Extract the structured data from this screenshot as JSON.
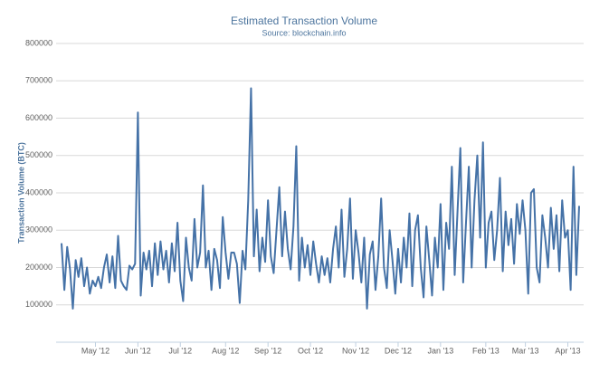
{
  "chart_data": {
    "type": "line",
    "title": "Estimated Transaction Volume",
    "subtitle": "Source: blockchain.info",
    "y_label": "Transaction Volume (BTC)",
    "ylim": [
      0,
      800000
    ],
    "yticks": [
      100000,
      200000,
      300000,
      400000,
      500000,
      600000,
      700000,
      800000
    ],
    "grid": true,
    "color": "#4572a7",
    "categories": [
      null,
      null,
      null,
      null,
      null,
      null,
      null,
      null,
      null,
      null,
      null,
      null,
      "May '12",
      null,
      null,
      null,
      null,
      null,
      null,
      null,
      null,
      null,
      null,
      null,
      null,
      null,
      null,
      "Jun '12",
      null,
      null,
      null,
      null,
      null,
      null,
      null,
      null,
      null,
      null,
      null,
      null,
      null,
      null,
      "Jul '12",
      null,
      null,
      null,
      null,
      null,
      null,
      null,
      null,
      null,
      null,
      null,
      null,
      null,
      null,
      null,
      "Aug '12",
      null,
      null,
      null,
      null,
      null,
      null,
      null,
      null,
      null,
      null,
      null,
      null,
      null,
      null,
      "Sep '12",
      null,
      null,
      null,
      null,
      null,
      null,
      null,
      null,
      null,
      null,
      null,
      null,
      null,
      null,
      "Oct '12",
      null,
      null,
      null,
      null,
      null,
      null,
      null,
      null,
      null,
      null,
      null,
      null,
      null,
      null,
      null,
      "Nov '12",
      null,
      null,
      null,
      null,
      null,
      null,
      null,
      null,
      null,
      null,
      null,
      null,
      null,
      null,
      "Dec '12",
      null,
      null,
      null,
      null,
      null,
      null,
      null,
      null,
      null,
      null,
      null,
      null,
      null,
      null,
      "Jan '13",
      null,
      null,
      null,
      null,
      null,
      null,
      null,
      null,
      null,
      null,
      null,
      null,
      null,
      null,
      null,
      "Feb '13",
      null,
      null,
      null,
      null,
      null,
      null,
      null,
      null,
      null,
      null,
      null,
      null,
      null,
      "Mar '13",
      null,
      null,
      null,
      null,
      null,
      null,
      null,
      null,
      null,
      null,
      null,
      null,
      null,
      null,
      "Apr '13",
      null,
      null,
      null,
      null
    ],
    "values": [
      265000,
      140000,
      255000,
      195000,
      90000,
      220000,
      175000,
      225000,
      150000,
      200000,
      130000,
      165000,
      150000,
      175000,
      145000,
      200000,
      235000,
      160000,
      230000,
      145000,
      285000,
      165000,
      150000,
      140000,
      205000,
      195000,
      210000,
      615000,
      125000,
      240000,
      195000,
      245000,
      150000,
      265000,
      180000,
      270000,
      195000,
      245000,
      160000,
      265000,
      190000,
      320000,
      165000,
      110000,
      280000,
      200000,
      165000,
      330000,
      200000,
      240000,
      420000,
      200000,
      245000,
      140000,
      250000,
      220000,
      145000,
      335000,
      240000,
      170000,
      240000,
      240000,
      210000,
      105000,
      245000,
      195000,
      380000,
      680000,
      230000,
      355000,
      190000,
      280000,
      215000,
      380000,
      230000,
      185000,
      300000,
      415000,
      230000,
      350000,
      250000,
      195000,
      310000,
      525000,
      165000,
      280000,
      200000,
      260000,
      180000,
      270000,
      210000,
      160000,
      230000,
      180000,
      225000,
      160000,
      250000,
      310000,
      200000,
      355000,
      175000,
      250000,
      385000,
      170000,
      300000,
      240000,
      160000,
      280000,
      90000,
      235000,
      270000,
      140000,
      230000,
      385000,
      200000,
      145000,
      300000,
      220000,
      130000,
      250000,
      160000,
      280000,
      200000,
      345000,
      150000,
      300000,
      340000,
      200000,
      120000,
      310000,
      220000,
      125000,
      280000,
      200000,
      370000,
      140000,
      320000,
      250000,
      470000,
      180000,
      350000,
      520000,
      160000,
      320000,
      470000,
      200000,
      380000,
      500000,
      280000,
      535000,
      200000,
      320000,
      350000,
      220000,
      300000,
      440000,
      190000,
      350000,
      260000,
      330000,
      210000,
      370000,
      290000,
      380000,
      300000,
      130000,
      400000,
      410000,
      200000,
      160000,
      340000,
      280000,
      200000,
      360000,
      250000,
      340000,
      190000,
      380000,
      280000,
      300000,
      140000,
      470000,
      180000,
      365000
    ]
  }
}
